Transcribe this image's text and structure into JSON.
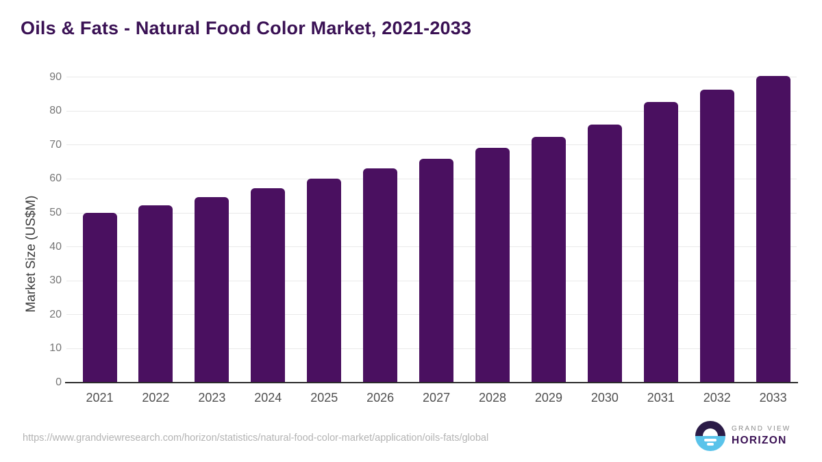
{
  "title": "Oils & Fats - Natural Food Color Market, 2021-2033",
  "chart_data": {
    "type": "bar",
    "title": "Oils & Fats - Natural Food Color Market, 2021-2033",
    "xlabel": "",
    "ylabel": "Market Size (US$M)",
    "categories": [
      "2021",
      "2022",
      "2023",
      "2024",
      "2025",
      "2026",
      "2027",
      "2028",
      "2029",
      "2030",
      "2031",
      "2032",
      "2033"
    ],
    "values": [
      50.0,
      52.3,
      54.7,
      57.3,
      60.0,
      63.1,
      66.0,
      69.2,
      72.4,
      76.0,
      82.6,
      86.3,
      90.3
    ],
    "ylim": [
      0,
      90
    ],
    "yticks": [
      0,
      10,
      20,
      30,
      40,
      50,
      60,
      70,
      80,
      90
    ],
    "grid": "horizontal",
    "legend": "none",
    "bar_color": "#4a1060"
  },
  "footer": {
    "source_url": "https://www.grandviewresearch.com/horizon/statistics/natural-food-color-market/application/oils-fats/global"
  },
  "logo": {
    "line1": "GRAND VIEW",
    "line2": "HORIZON"
  },
  "colors": {
    "title": "#3a1154",
    "bar": "#4a1060",
    "gridline": "#e9e9e9",
    "axis_line": "#2b2b2b",
    "ytick_text": "#757575",
    "xtick_text": "#4f4f4f",
    "url_text": "#b3b3b3",
    "logo_top": "#2b1b47",
    "logo_bottom": "#5ac3ea"
  }
}
